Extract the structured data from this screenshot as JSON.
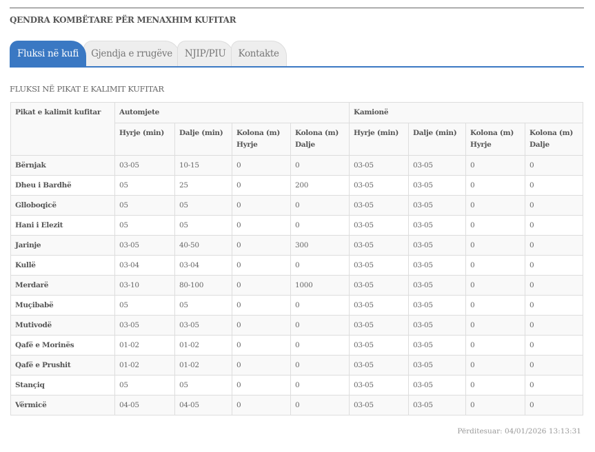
{
  "title": "QENDRA KOMBËTARE PËR MENAXHIM KUFITAR",
  "tabs": [
    {
      "label": "Fluksi në kufi",
      "active": true
    },
    {
      "label": "Gjendja e rrugëve"
    },
    {
      "label": "NJIP/PIU"
    },
    {
      "label": "Kontakte"
    }
  ],
  "accent": "#3a78c3",
  "subtitle": "FLUKSI NË PIKAT E KALIMIT KUFITAR",
  "table": {
    "col0": "Pikat e kalimit kufitar",
    "groups": [
      "Automjete",
      "Kamionë"
    ],
    "sub": [
      "Hyrje (min)",
      "Dalje (min)",
      "Kolona (m) Hyrje",
      "Kolona (m) Dalje",
      "Hyrje (min)",
      "Dalje (min)",
      "Kolona (m) Hyrje",
      "Kolona (m) Dalje"
    ],
    "rows": [
      [
        "Bërnjak",
        "03-05",
        "10-15",
        "0",
        "0",
        "03-05",
        "03-05",
        "0",
        "0"
      ],
      [
        "Dheu i Bardhë",
        "05",
        "25",
        "0",
        "200",
        "03-05",
        "03-05",
        "0",
        "0"
      ],
      [
        "Glloboqicë",
        "05",
        "05",
        "0",
        "0",
        "03-05",
        "03-05",
        "0",
        "0"
      ],
      [
        "Hani i Elezit",
        "05",
        "05",
        "0",
        "0",
        "03-05",
        "03-05",
        "0",
        "0"
      ],
      [
        "Jarinje",
        "03-05",
        "40-50",
        "0",
        "300",
        "03-05",
        "03-05",
        "0",
        "0"
      ],
      [
        "Kullë",
        "03-04",
        "03-04",
        "0",
        "0",
        "03-05",
        "03-05",
        "0",
        "0"
      ],
      [
        "Merdarë",
        "03-10",
        "80-100",
        "0",
        "1000",
        "03-05",
        "03-05",
        "0",
        "0"
      ],
      [
        "Muçibabë",
        "05",
        "05",
        "0",
        "0",
        "03-05",
        "03-05",
        "0",
        "0"
      ],
      [
        "Mutivodë",
        "03-05",
        "03-05",
        "0",
        "0",
        "03-05",
        "03-05",
        "0",
        "0"
      ],
      [
        "Qafë e Morinës",
        "01-02",
        "01-02",
        "0",
        "0",
        "03-05",
        "03-05",
        "0",
        "0"
      ],
      [
        "Qafë e Prushit",
        "01-02",
        "01-02",
        "0",
        "0",
        "03-05",
        "03-05",
        "0",
        "0"
      ],
      [
        "Stançiq",
        "05",
        "05",
        "0",
        "0",
        "03-05",
        "03-05",
        "0",
        "0"
      ],
      [
        "Vërmicë",
        "04-05",
        "04-05",
        "0",
        "0",
        "03-05",
        "03-05",
        "0",
        "0"
      ]
    ]
  },
  "updated": "Përditesuar: 04/01/2026 13:13:31"
}
